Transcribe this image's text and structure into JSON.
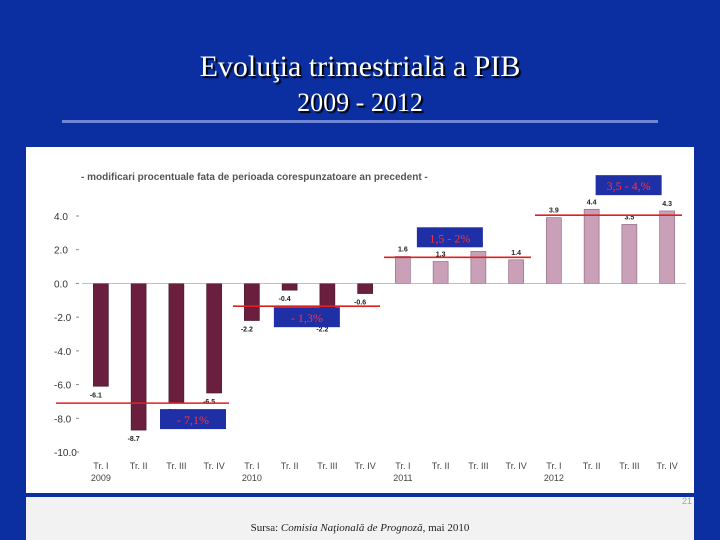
{
  "slide": {
    "title_line1": "Evoluţia trimestrială a PIB",
    "title_line2": "2009 - 2012",
    "source_prefix": "Sursa: ",
    "source_italic": "Comisia Naţională de Prognoză",
    "source_suffix": ", mai 2010",
    "page_number": "21"
  },
  "chart_data": {
    "type": "bar",
    "subtitle": "- modificari procentuale  fata de perioada  corespunzatoare an precedent -",
    "categories": [
      "Tr. I",
      "Tr. II",
      "Tr. III",
      "Tr. IV",
      "Tr. I",
      "Tr. II",
      "Tr. III",
      "Tr. IV",
      "Tr. I",
      "Tr. II",
      "Tr. III",
      "Tr. IV",
      "Tr. I",
      "Tr. II",
      "Tr. III",
      "Tr. IV"
    ],
    "year_labels": [
      {
        "index": 0,
        "label": "2009"
      },
      {
        "index": 4,
        "label": "2010"
      },
      {
        "index": 8,
        "label": "2011"
      },
      {
        "index": 12,
        "label": "2012"
      }
    ],
    "values": [
      -6.1,
      -8.7,
      -7.1,
      -6.5,
      -2.2,
      -0.4,
      -2.2,
      -0.6,
      1.6,
      1.3,
      1.9,
      1.4,
      3.9,
      4.4,
      3.5,
      4.3
    ],
    "value_labels": [
      "-6.1",
      "-8.7",
      "-7.1",
      "-6.5",
      "-2.2",
      "-0.4",
      "-2.2",
      "-0.6",
      "1.6",
      "1.3",
      "1.9",
      "1.4",
      "3.9",
      "4.4",
      "3.5",
      "4.3"
    ],
    "y_ticks": [
      4.0,
      2.0,
      0.0,
      -2.0,
      -4.0,
      -6.0,
      -8.0,
      -10.0
    ],
    "y_tick_labels": [
      "4.0",
      "2.0",
      "0.0",
      "-2.0",
      "-4.0",
      "-6.0",
      "-8.0",
      "-10.0"
    ],
    "ylim": [
      -10,
      4
    ],
    "colors": {
      "negative": "#6b1f3f",
      "positive": "#c9a0b8",
      "annotation_box": "#1f2fa6",
      "annotation_text": "#ff3333",
      "avg_line": "#e02020"
    },
    "annotations": [
      {
        "text": "- 7,1%",
        "group": 0,
        "value": -7.1
      },
      {
        "text": "- 1,3%",
        "group": 1,
        "value": -1.35
      },
      {
        "text": "1,5 - 2%",
        "group": 2,
        "value": 1.55
      },
      {
        "text": "3,5 - 4,%",
        "group": 3,
        "value": 4.05
      }
    ]
  }
}
